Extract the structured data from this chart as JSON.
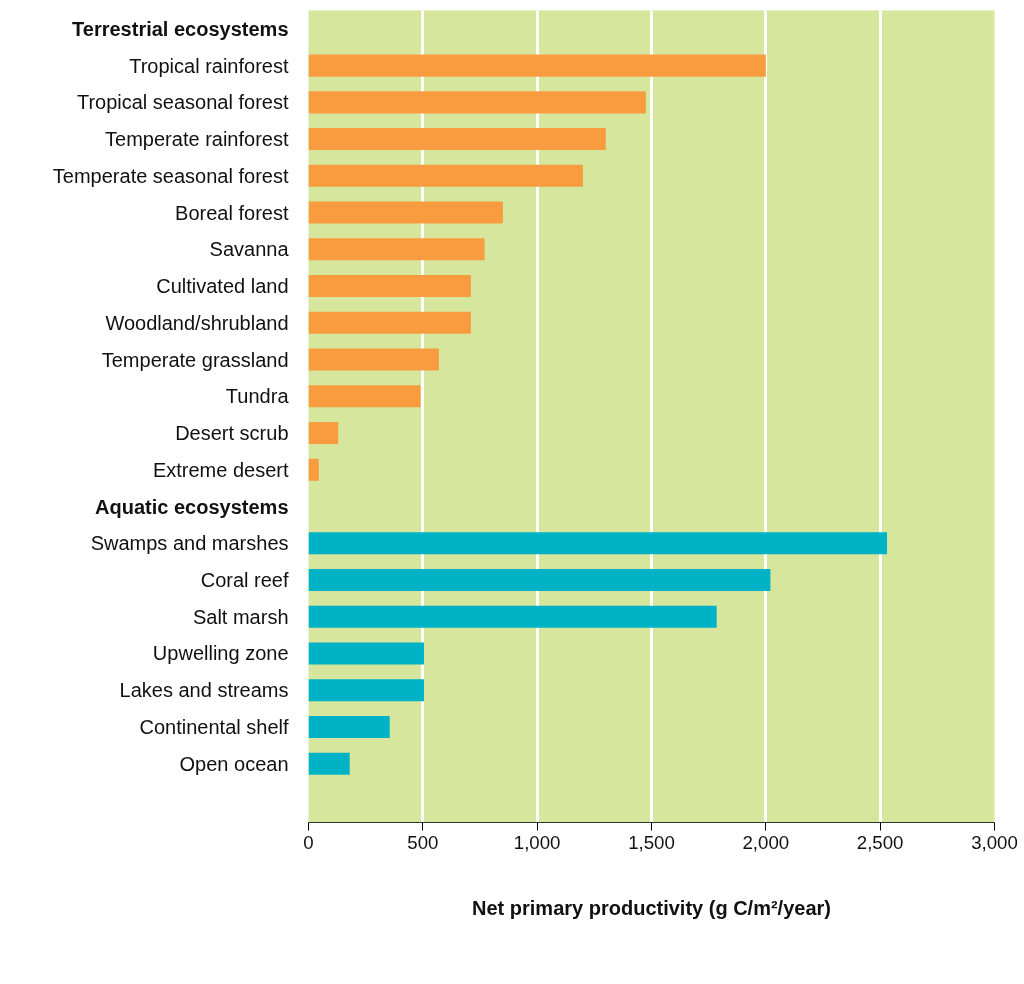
{
  "chart_data": {
    "type": "bar",
    "orientation": "horizontal",
    "xlabel": "Net primary productivity (g C/m²/year)",
    "categories": [
      "Terrestrial ecosystems",
      "Tropical rainforest",
      "Tropical seasonal forest",
      "Temperate rainforest",
      "Temperate seasonal forest",
      "Boreal forest",
      "Savanna",
      "Cultivated land",
      "Woodland/shrubland",
      "Temperate grassland",
      "Tundra",
      "Desert scrub",
      "Extreme desert",
      "Aquatic ecosystems",
      "Swamps and marshes",
      "Coral reef",
      "Salt marsh",
      "Upwelling zone",
      "Lakes and streams",
      "Continental shelf",
      "Open ocean"
    ],
    "values": [
      null,
      2000,
      1475,
      1300,
      1200,
      850,
      770,
      710,
      710,
      570,
      490,
      130,
      45,
      null,
      2530,
      2020,
      1785,
      505,
      505,
      355,
      180
    ],
    "colors": [
      null,
      "#f89c3f",
      "#f89c3f",
      "#f89c3f",
      "#f89c3f",
      "#f89c3f",
      "#f89c3f",
      "#f89c3f",
      "#f89c3f",
      "#f89c3f",
      "#f89c3f",
      "#f89c3f",
      "#f89c3f",
      null,
      "#00b2c6",
      "#00b2c6",
      "#00b2c6",
      "#00b2c6",
      "#00b2c6",
      "#00b2c6",
      "#00b2c6"
    ],
    "xlim": [
      0,
      3000
    ],
    "xticks": [
      0,
      500,
      {
        "value": 1000,
        "label": "1,000"
      },
      {
        "value": 1500,
        "label": "1,500"
      },
      {
        "value": 2000,
        "label": "2,000"
      },
      {
        "value": 2500,
        "label": "2,500"
      },
      {
        "value": 3000,
        "label": "3,000"
      }
    ],
    "grid": "x"
  }
}
